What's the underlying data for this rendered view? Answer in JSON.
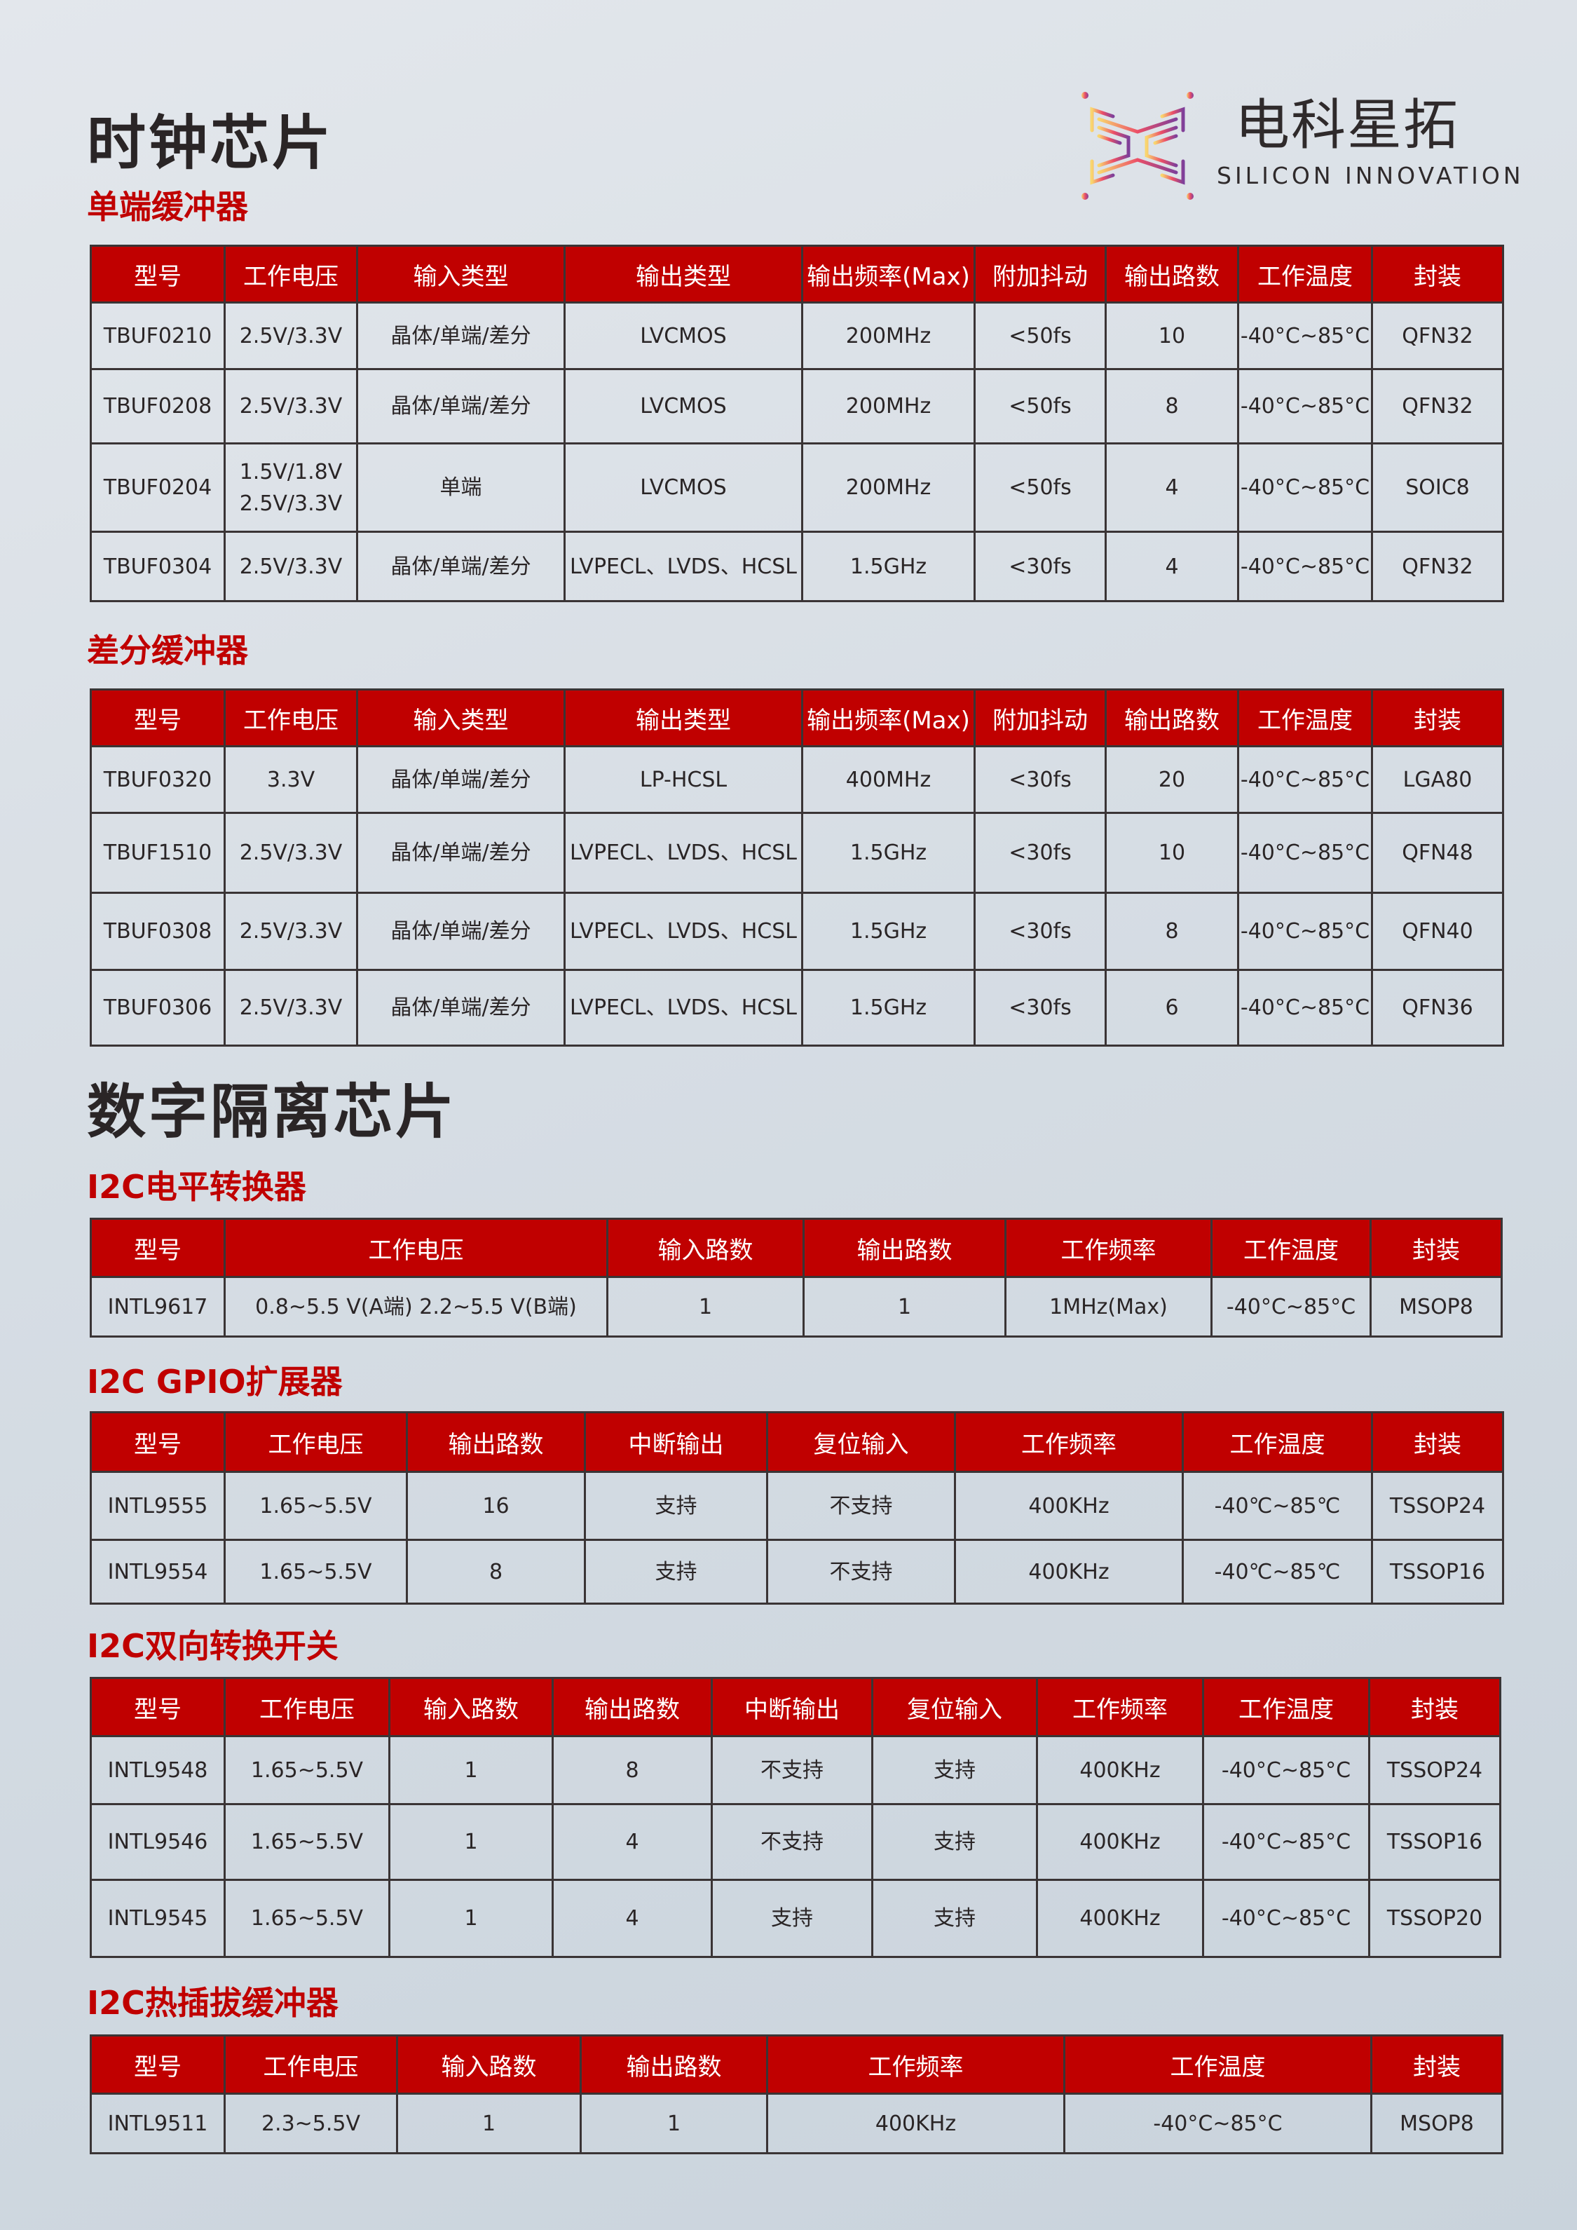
{
  "brand": {
    "name_cn": "电科星拓",
    "name_en": "SILICON INNOVATION"
  },
  "colors": {
    "header": "#c00000",
    "title": "#c00000",
    "text": "#2a2526"
  },
  "sections": [
    {
      "title": "时钟芯片"
    },
    {
      "title": "数字隔离芯片"
    }
  ],
  "tables": [
    {
      "title": "单端缓冲器",
      "headers": [
        "型号",
        "工作电压",
        "输入类型",
        "输出类型",
        "输出频率(Max)",
        "附加抖动",
        "输出路数",
        "工作温度",
        "封装"
      ],
      "rows": [
        [
          "TBUF0210",
          "2.5V/3.3V",
          "晶体/单端/差分",
          "LVCMOS",
          "200MHz",
          "<50fs",
          "10",
          "-40°C~85°C",
          "QFN32"
        ],
        [
          "TBUF0208",
          "2.5V/3.3V",
          "晶体/单端/差分",
          "LVCMOS",
          "200MHz",
          "<50fs",
          "8",
          "-40°C~85°C",
          "QFN32"
        ],
        [
          "TBUF0204",
          "1.5V/1.8V\n2.5V/3.3V",
          "单端",
          "LVCMOS",
          "200MHz",
          "<50fs",
          "4",
          "-40°C~85°C",
          "SOIC8"
        ],
        [
          "TBUF0304",
          "2.5V/3.3V",
          "晶体/单端/差分",
          "LVPECL、LVDS、HCSL",
          "1.5GHz",
          "<30fs",
          "4",
          "-40°C~85°C",
          "QFN32"
        ]
      ]
    },
    {
      "title": "差分缓冲器",
      "headers": [
        "型号",
        "工作电压",
        "输入类型",
        "输出类型",
        "输出频率(Max)",
        "附加抖动",
        "输出路数",
        "工作温度",
        "封装"
      ],
      "rows": [
        [
          "TBUF0320",
          "3.3V",
          "晶体/单端/差分",
          "LP-HCSL",
          "400MHz",
          "<30fs",
          "20",
          "-40°C~85°C",
          "LGA80"
        ],
        [
          "TBUF1510",
          "2.5V/3.3V",
          "晶体/单端/差分",
          "LVPECL、LVDS、HCSL",
          "1.5GHz",
          "<30fs",
          "10",
          "-40°C~85°C",
          "QFN48"
        ],
        [
          "TBUF0308",
          "2.5V/3.3V",
          "晶体/单端/差分",
          "LVPECL、LVDS、HCSL",
          "1.5GHz",
          "<30fs",
          "8",
          "-40°C~85°C",
          "QFN40"
        ],
        [
          "TBUF0306",
          "2.5V/3.3V",
          "晶体/单端/差分",
          "LVPECL、LVDS、HCSL",
          "1.5GHz",
          "<30fs",
          "6",
          "-40°C~85°C",
          "QFN36"
        ]
      ]
    },
    {
      "title": "I2C电平转换器",
      "headers": [
        "型号",
        "工作电压",
        "输入路数",
        "输出路数",
        "工作频率",
        "工作温度",
        "封装"
      ],
      "rows": [
        [
          "INTL9617",
          "0.8~5.5 V(A端)    2.2~5.5 V(B端)",
          "1",
          "1",
          "1MHz(Max)",
          "-40°C~85°C",
          "MSOP8"
        ]
      ]
    },
    {
      "title": "I2C GPIO扩展器",
      "headers": [
        "型号",
        "工作电压",
        "输出路数",
        "中断输出",
        "复位输入",
        "工作频率",
        "工作温度",
        "封装"
      ],
      "rows": [
        [
          "INTL9555",
          "1.65~5.5V",
          "16",
          "支持",
          "不支持",
          "400KHz",
          "-40℃~85℃",
          "TSSOP24"
        ],
        [
          "INTL9554",
          "1.65~5.5V",
          "8",
          "支持",
          "不支持",
          "400KHz",
          "-40℃~85℃",
          "TSSOP16"
        ]
      ]
    },
    {
      "title": "I2C双向转换开关",
      "headers": [
        "型号",
        "工作电压",
        "输入路数",
        "输出路数",
        "中断输出",
        "复位输入",
        "工作频率",
        "工作温度",
        "封装"
      ],
      "rows": [
        [
          "INTL9548",
          "1.65~5.5V",
          "1",
          "8",
          "不支持",
          "支持",
          "400KHz",
          "-40°C~85°C",
          "TSSOP24"
        ],
        [
          "INTL9546",
          "1.65~5.5V",
          "1",
          "4",
          "不支持",
          "支持",
          "400KHz",
          "-40°C~85°C",
          "TSSOP16"
        ],
        [
          "INTL9545",
          "1.65~5.5V",
          "1",
          "4",
          "支持",
          "支持",
          "400KHz",
          "-40°C~85°C",
          "TSSOP20"
        ]
      ]
    },
    {
      "title": "I2C热插拔缓冲器",
      "headers": [
        "型号",
        "工作电压",
        "输入路数",
        "输出路数",
        "工作频率",
        "工作温度",
        "封装"
      ],
      "rows": [
        [
          "INTL9511",
          "2.3~5.5V",
          "1",
          "1",
          "400KHz",
          "-40°C~85°C",
          "MSOP8"
        ]
      ]
    }
  ]
}
